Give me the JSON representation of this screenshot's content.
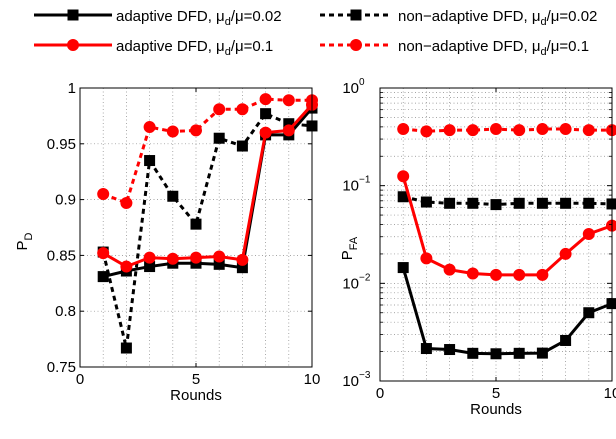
{
  "legend": {
    "entries": [
      {
        "name_prefix": "adaptive DFD, ",
        "mu_d": "μ",
        "sub_d": "d",
        "ratio": "/μ=0.02",
        "color": "#000000",
        "marker": "square",
        "style": "solid"
      },
      {
        "name_prefix": "non−adaptive DFD, ",
        "mu_d": "μ",
        "sub_d": "d",
        "ratio": "/μ=0.02",
        "color": "#000000",
        "marker": "square",
        "style": "dashed"
      },
      {
        "name_prefix": "adaptive DFD, ",
        "mu_d": "μ",
        "sub_d": "d",
        "ratio": "/μ=0.1",
        "color": "#ff0000",
        "marker": "circle",
        "style": "solid"
      },
      {
        "name_prefix": "non−adaptive DFD, ",
        "mu_d": "μ",
        "sub_d": "d",
        "ratio": "/μ=0.1",
        "color": "#ff0000",
        "marker": "circle",
        "style": "dashed"
      }
    ]
  },
  "chart_data": [
    {
      "type": "line",
      "xlabel": "Rounds",
      "ylabel_main": "P",
      "ylabel_sub": "D",
      "xlim": [
        0,
        10
      ],
      "ylim": [
        0.75,
        1.0
      ],
      "yscale": "linear",
      "grid": true,
      "xticks": [
        0,
        5,
        10
      ],
      "xtick_labels": [
        "0",
        "5",
        "10"
      ],
      "yticks": [
        0.75,
        0.8,
        0.85,
        0.9,
        0.95,
        1.0
      ],
      "ytick_labels": [
        "0.75",
        "0.8",
        "0.85",
        "0.9",
        "0.95",
        "1"
      ],
      "x": [
        1,
        2,
        3,
        4,
        5,
        6,
        7,
        8,
        9,
        10
      ],
      "series": [
        {
          "values": [
            0.831,
            0.836,
            0.84,
            0.843,
            0.843,
            0.842,
            0.839,
            0.958,
            0.958,
            0.982
          ],
          "color": "#000000",
          "marker": "square",
          "style": "solid"
        },
        {
          "values": [
            0.853,
            0.767,
            0.935,
            0.903,
            0.878,
            0.955,
            0.948,
            0.977,
            0.968,
            0.966
          ],
          "color": "#000000",
          "marker": "square",
          "style": "dashed"
        },
        {
          "values": [
            0.852,
            0.84,
            0.848,
            0.847,
            0.848,
            0.849,
            0.846,
            0.96,
            0.962,
            0.985
          ],
          "color": "#ff0000",
          "marker": "circle",
          "style": "solid"
        },
        {
          "values": [
            0.905,
            0.897,
            0.965,
            0.961,
            0.962,
            0.981,
            0.981,
            0.99,
            0.989,
            0.989
          ],
          "color": "#ff0000",
          "marker": "circle",
          "style": "dashed"
        }
      ]
    },
    {
      "type": "line",
      "xlabel": "Rounds",
      "ylabel_main": "P",
      "ylabel_sub": "FA",
      "xlim": [
        0,
        10
      ],
      "ylim": [
        0.001,
        1
      ],
      "yscale": "log",
      "grid": true,
      "xticks": [
        0,
        5,
        10
      ],
      "xtick_labels": [
        "0",
        "5",
        "10"
      ],
      "yticks": [
        0.001,
        0.01,
        0.1,
        1
      ],
      "ytick_exponents": [
        "−3",
        "−2",
        "−1",
        "0"
      ],
      "ytick_base": "10",
      "x": [
        1,
        2,
        3,
        4,
        5,
        6,
        7,
        8,
        9,
        10
      ],
      "series": [
        {
          "values": [
            0.0145,
            0.00215,
            0.0021,
            0.00192,
            0.0019,
            0.00192,
            0.00193,
            0.0026,
            0.005,
            0.0062
          ],
          "color": "#000000",
          "marker": "square",
          "style": "solid"
        },
        {
          "values": [
            0.077,
            0.068,
            0.066,
            0.066,
            0.064,
            0.066,
            0.066,
            0.066,
            0.066,
            0.065
          ],
          "color": "#000000",
          "marker": "square",
          "style": "dashed"
        },
        {
          "values": [
            0.125,
            0.018,
            0.0138,
            0.0126,
            0.0122,
            0.0122,
            0.0122,
            0.02,
            0.032,
            0.039
          ],
          "color": "#ff0000",
          "marker": "circle",
          "style": "solid"
        },
        {
          "values": [
            0.38,
            0.36,
            0.37,
            0.37,
            0.38,
            0.37,
            0.38,
            0.38,
            0.37,
            0.37
          ],
          "color": "#ff0000",
          "marker": "circle",
          "style": "dashed"
        }
      ]
    }
  ]
}
